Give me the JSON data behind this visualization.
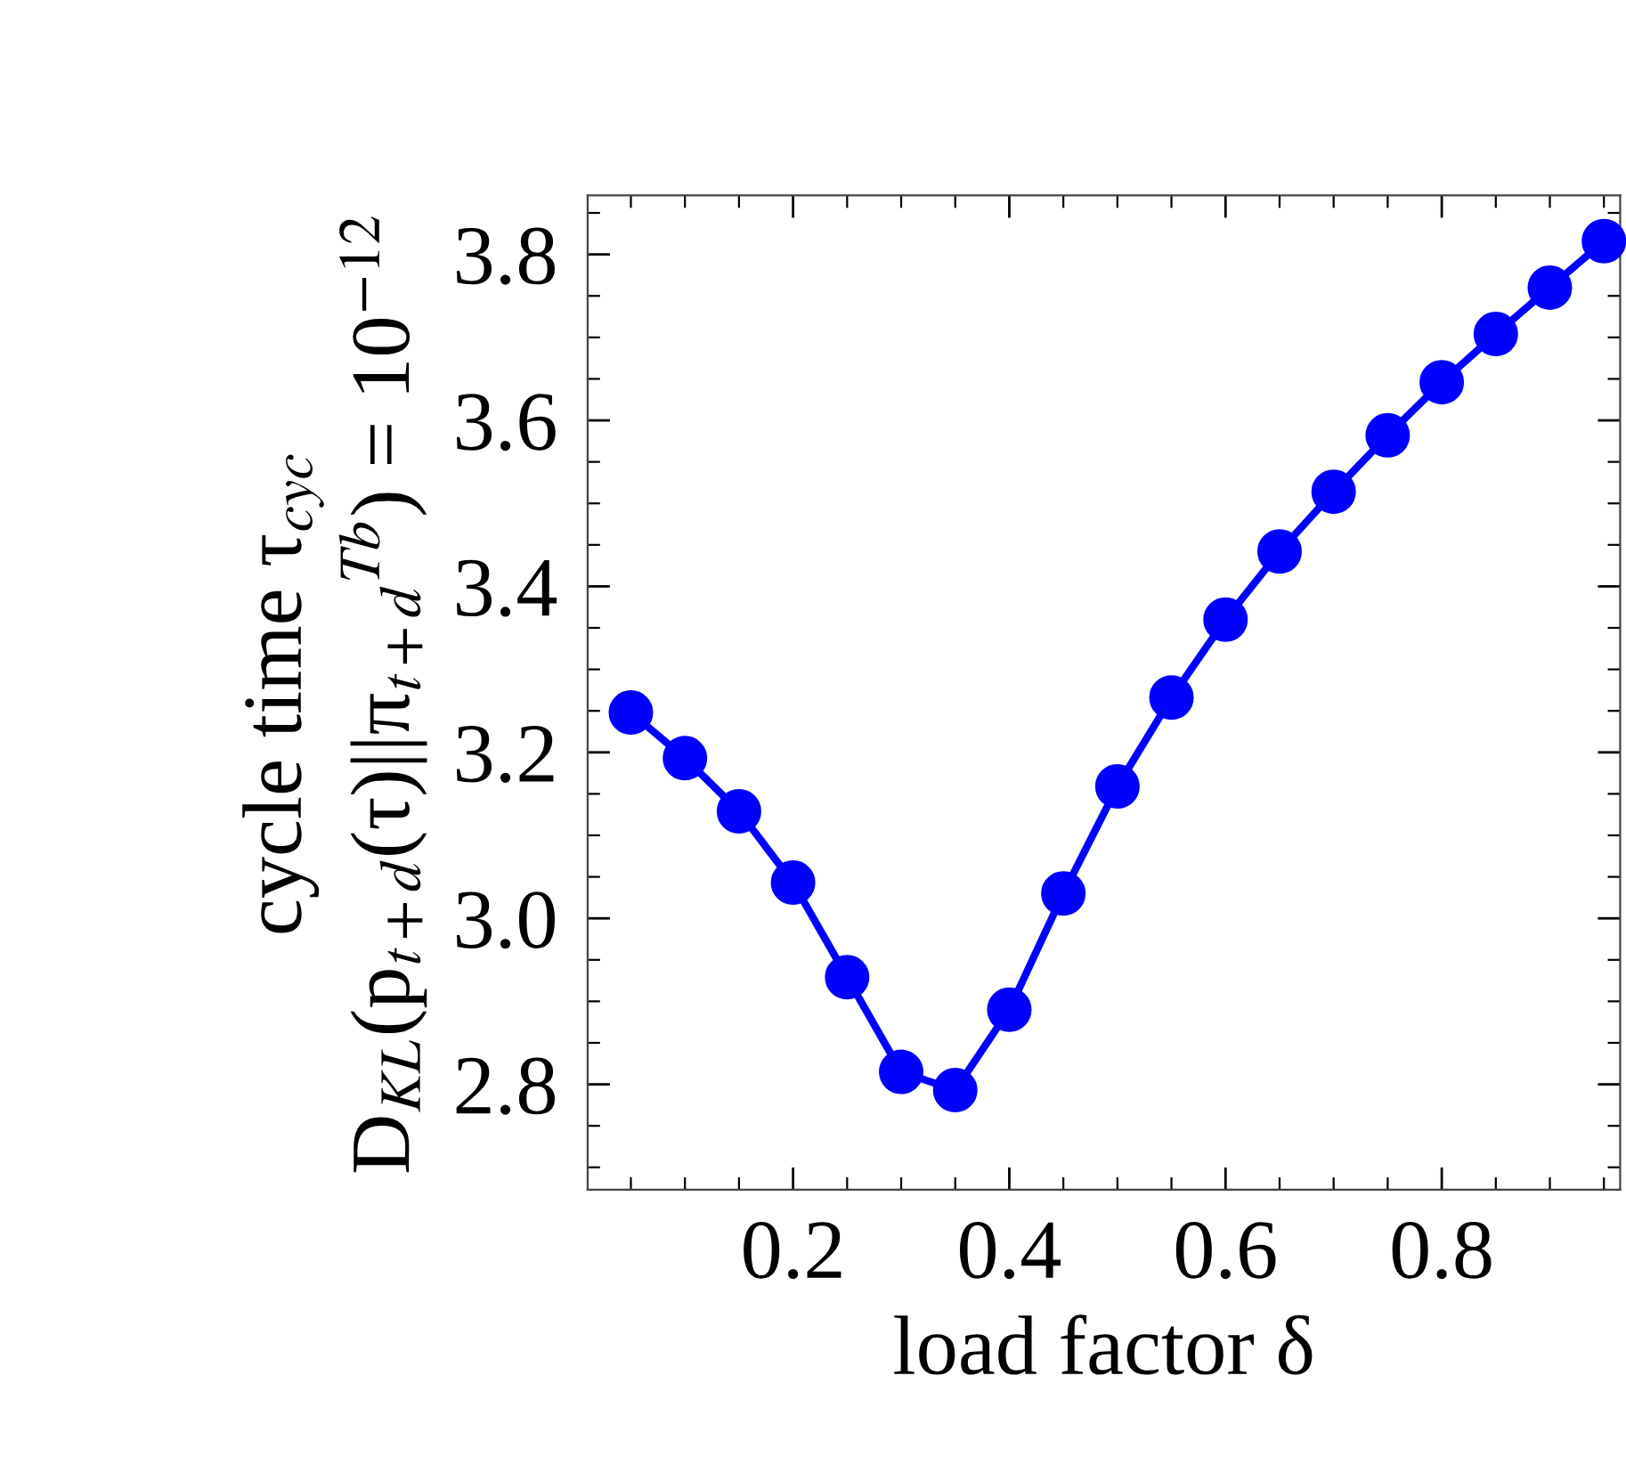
{
  "chart_data": {
    "type": "line",
    "xlabel": "load factor δ",
    "ylabel": "cycle time τ$_{cyc}$\nD$_{KL}$(p$_{t+d}$(τ)||π$_{t+d}$$^{Tb}$) = 10$^{−12}$",
    "x": [
      0.05,
      0.1,
      0.15,
      0.2,
      0.25,
      0.3,
      0.35,
      0.4,
      0.45,
      0.5,
      0.55,
      0.6,
      0.65,
      0.7,
      0.75,
      0.8,
      0.85,
      0.9,
      0.95
    ],
    "series": [
      {
        "color": "#0000ff",
        "values": [
          3.248,
          3.193,
          3.129,
          3.043,
          2.929,
          2.815,
          2.793,
          2.89,
          3.03,
          3.159,
          3.266,
          3.36,
          3.442,
          3.514,
          3.582,
          3.646,
          3.704,
          3.76,
          3.816
        ]
      }
    ],
    "xlim": [
      0.01,
      0.965
    ],
    "ylim": [
      2.673,
      3.871
    ],
    "xticks": [
      0.2,
      0.4,
      0.6,
      0.8
    ],
    "yticks": [
      2.8,
      {
        "value": 3.0,
        "label": "3.0"
      },
      3.2,
      3.4,
      3.6,
      3.8
    ],
    "marker": "circle",
    "line_style": "solid",
    "grid": false,
    "legend": false
  }
}
